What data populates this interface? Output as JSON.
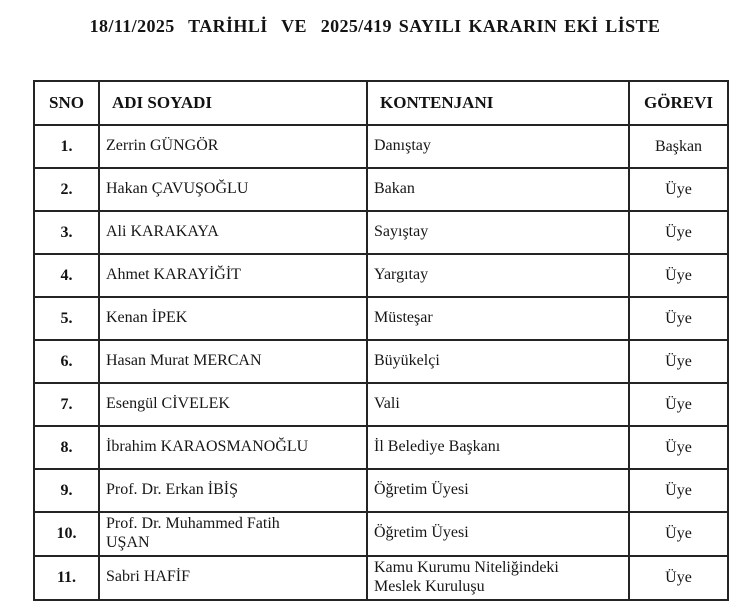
{
  "page": {
    "title": "18/11/2025  TARİHLİ  VE  2025/419 SAYILI KARARIN EKİ LİSTE"
  },
  "table": {
    "headers": {
      "sno": "SNO",
      "name": "ADI SOYADI",
      "quota": "KONTENJANI",
      "role": "GÖREVI"
    },
    "rows": [
      {
        "sno": "1.",
        "name": "Zerrin GÜNGÖR",
        "quota": "Danıştay",
        "role": "Başkan"
      },
      {
        "sno": "2.",
        "name": "Hakan ÇAVUŞOĞLU",
        "quota": "Bakan",
        "role": "Üye"
      },
      {
        "sno": "3.",
        "name": "Ali KARAKAYA",
        "quota": "Sayıştay",
        "role": "Üye"
      },
      {
        "sno": "4.",
        "name": "Ahmet KARAYİĞİT",
        "quota": "Yargıtay",
        "role": "Üye"
      },
      {
        "sno": "5.",
        "name": "Kenan İPEK",
        "quota": "Müsteşar",
        "role": "Üye"
      },
      {
        "sno": "6.",
        "name": "Hasan Murat MERCAN",
        "quota": "Büyükelçi",
        "role": "Üye"
      },
      {
        "sno": "7.",
        "name": "Esengül CİVELEK",
        "quota": "Vali",
        "role": "Üye"
      },
      {
        "sno": "8.",
        "name": "İbrahim KARAOSMANOĞLU",
        "quota": "İl Belediye Başkanı",
        "role": "Üye"
      },
      {
        "sno": "9.",
        "name": "Prof. Dr. Erkan İBİŞ",
        "quota": "Öğretim Üyesi",
        "role": "Üye"
      },
      {
        "sno": "10.",
        "name": "Prof. Dr. Muhammed Fatih\nUŞAN",
        "quota": "Öğretim Üyesi",
        "role": "Üye"
      },
      {
        "sno": "11.",
        "name": "Sabri HAFİF",
        "quota": "Kamu Kurumu Niteliğindeki\nMeslek Kuruluşu",
        "role": "Üye"
      }
    ]
  }
}
